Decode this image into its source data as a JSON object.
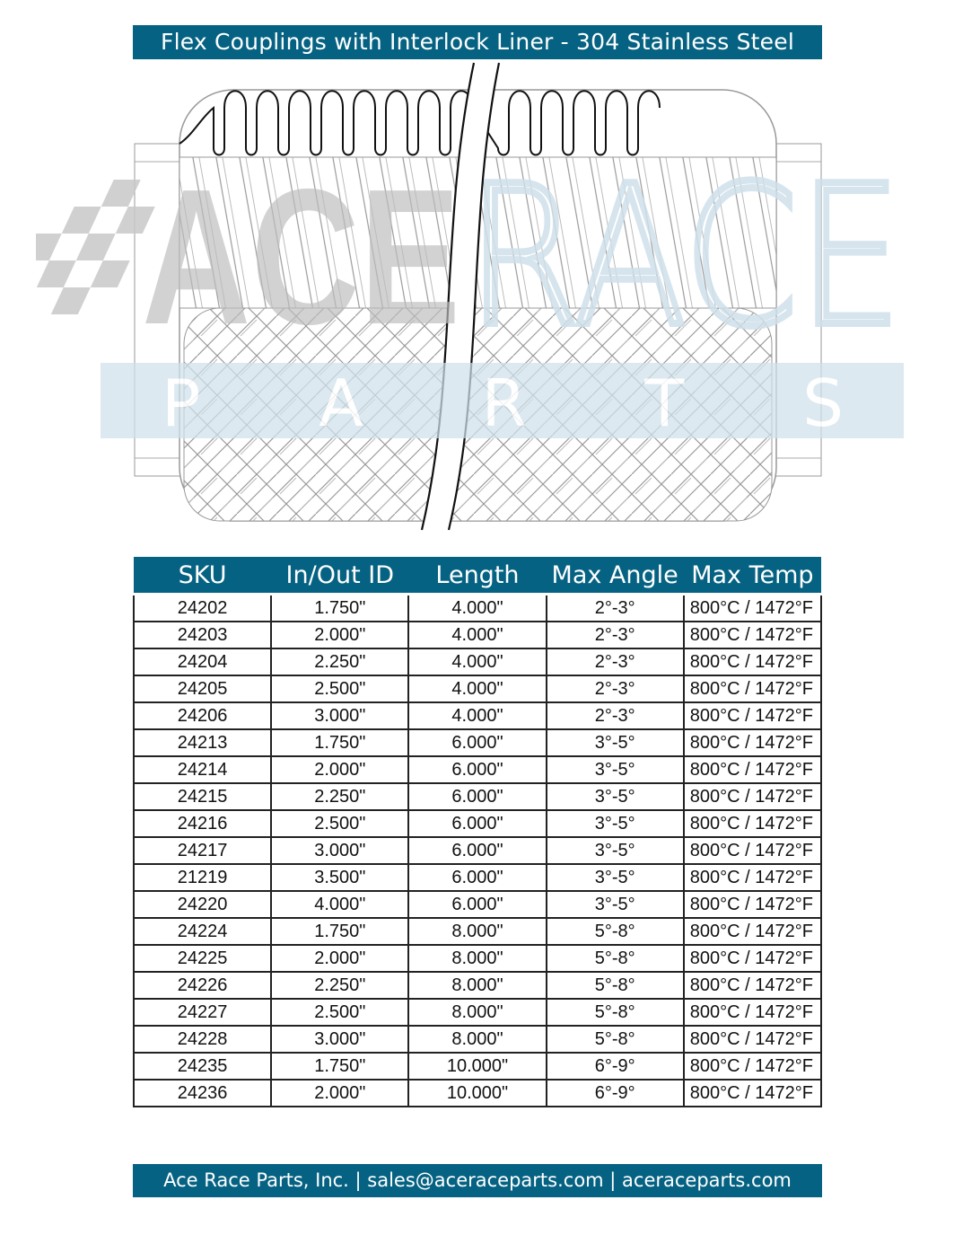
{
  "title": "Flex Couplings with Interlock Liner - 304 Stainless Steel",
  "watermark": {
    "logo_text_1": "ACE",
    "logo_text_2": "RACE",
    "logo_text_3": "P A R T S",
    "colors": {
      "grey": "#c8c8c8",
      "blue": "#cfe0ea"
    }
  },
  "colors": {
    "accent": "#066282"
  },
  "table": {
    "headers": [
      "SKU",
      "In/Out ID",
      "Length",
      "Max Angle",
      "Max Temp"
    ],
    "rows": [
      [
        "24202",
        "1.750\"",
        "4.000\"",
        "2°-3°",
        "800°C / 1472°F"
      ],
      [
        "24203",
        "2.000\"",
        "4.000\"",
        "2°-3°",
        "800°C / 1472°F"
      ],
      [
        "24204",
        "2.250\"",
        "4.000\"",
        "2°-3°",
        "800°C / 1472°F"
      ],
      [
        "24205",
        "2.500\"",
        "4.000\"",
        "2°-3°",
        "800°C / 1472°F"
      ],
      [
        "24206",
        "3.000\"",
        "4.000\"",
        "2°-3°",
        "800°C / 1472°F"
      ],
      [
        "24213",
        "1.750\"",
        "6.000\"",
        "3°-5°",
        "800°C / 1472°F"
      ],
      [
        "24214",
        "2.000\"",
        "6.000\"",
        "3°-5°",
        "800°C / 1472°F"
      ],
      [
        "24215",
        "2.250\"",
        "6.000\"",
        "3°-5°",
        "800°C / 1472°F"
      ],
      [
        "24216",
        "2.500\"",
        "6.000\"",
        "3°-5°",
        "800°C / 1472°F"
      ],
      [
        "24217",
        "3.000\"",
        "6.000\"",
        "3°-5°",
        "800°C / 1472°F"
      ],
      [
        "21219",
        "3.500\"",
        "6.000\"",
        "3°-5°",
        "800°C / 1472°F"
      ],
      [
        "24220",
        "4.000\"",
        "6.000\"",
        "3°-5°",
        "800°C / 1472°F"
      ],
      [
        "24224",
        "1.750\"",
        "8.000\"",
        "5°-8°",
        "800°C / 1472°F"
      ],
      [
        "24225",
        "2.000\"",
        "8.000\"",
        "5°-8°",
        "800°C / 1472°F"
      ],
      [
        "24226",
        "2.250\"",
        "8.000\"",
        "5°-8°",
        "800°C / 1472°F"
      ],
      [
        "24227",
        "2.500\"",
        "8.000\"",
        "5°-8°",
        "800°C / 1472°F"
      ],
      [
        "24228",
        "3.000\"",
        "8.000\"",
        "5°-8°",
        "800°C / 1472°F"
      ],
      [
        "24235",
        "1.750\"",
        "10.000\"",
        "6°-9°",
        "800°C / 1472°F"
      ],
      [
        "24236",
        "2.000\"",
        "10.000\"",
        "6°-9°",
        "800°C / 1472°F"
      ]
    ]
  },
  "footer": "Ace Race Parts, Inc. | sales@aceraceparts.com | aceraceparts.com"
}
